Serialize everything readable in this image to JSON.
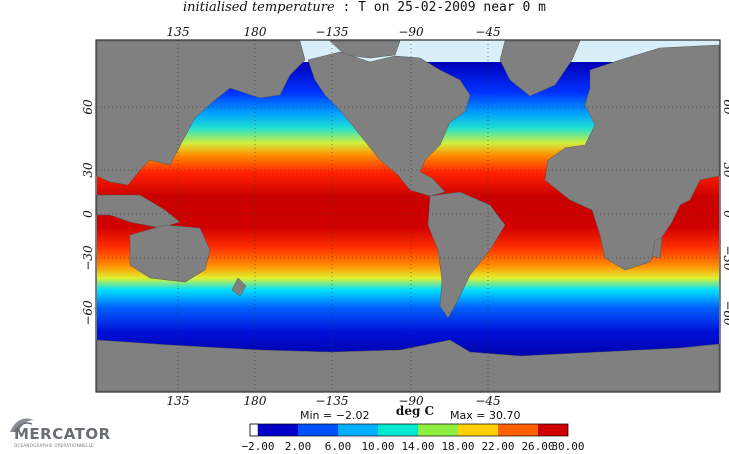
{
  "title": {
    "prefix": "initialised temperature",
    "main": ": T on 25-02-2009 near 0 m"
  },
  "map": {
    "longitude_ticks_top": [
      "135",
      "180",
      "−135",
      "−90",
      "−45"
    ],
    "longitude_ticks_bottom": [
      "135",
      "180",
      "−135",
      "−90",
      "−45"
    ],
    "latitude_ticks": [
      "60",
      "30",
      "0",
      "−30",
      "−60"
    ],
    "land_color": "#808080",
    "ice_color": "#d8eef9",
    "ocean_palette": [
      "#0000b4",
      "#0040ff",
      "#00a0ff",
      "#00e8e8",
      "#40f080",
      "#c0f040",
      "#ffd000",
      "#ff8000",
      "#ff2000",
      "#c00000"
    ]
  },
  "stats": {
    "min_label": "Min = −2.02",
    "max_label": "Max = 30.70",
    "units": "deg C"
  },
  "colorbar": {
    "labels": [
      "−2.00",
      "2.00",
      "6.00",
      "10.00",
      "14.00",
      "18.00",
      "22.00",
      "26.00",
      "30.00"
    ]
  },
  "logo": {
    "text": "MERCATOR",
    "tagline": "OCEANOGRAPHIE OPERATIONNELLE"
  }
}
